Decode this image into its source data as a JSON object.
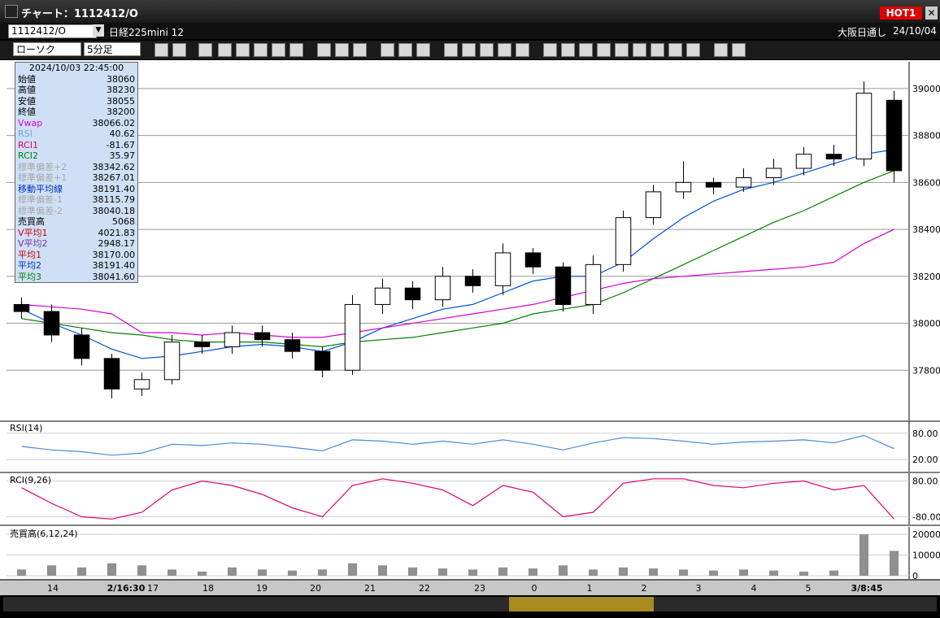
{
  "window": {
    "title": "チャート：1112412/O",
    "badge": "HOT1"
  },
  "toolbar": {
    "symbol": "1112412/O",
    "name": "日経225mini 12",
    "session": "大阪日通し",
    "date": "24/10/04",
    "chart_kind": "ローソク",
    "interval": "5分足"
  },
  "info_panel": {
    "timestamp": "2024/10/03 22:45:00",
    "rows": [
      {
        "label": "始値",
        "value": "38060",
        "color": "#000000"
      },
      {
        "label": "高値",
        "value": "38230",
        "color": "#000000"
      },
      {
        "label": "安値",
        "value": "38055",
        "color": "#000000"
      },
      {
        "label": "終値",
        "value": "38200",
        "color": "#000000"
      },
      {
        "label": "Vwap",
        "value": "38066.02",
        "color": "#d000d0"
      },
      {
        "label": "RSI",
        "value": "40.62",
        "color": "#6fa0e0"
      },
      {
        "label": "RCI1",
        "value": "-81.67",
        "color": "#e0006a"
      },
      {
        "label": "RCI2",
        "value": "35.97",
        "color": "#008000"
      },
      {
        "label": "標準偏差+2",
        "value": "38342.62",
        "color": "#a8a8a8"
      },
      {
        "label": "標準偏差+1",
        "value": "38267.01",
        "color": "#a8a8a8"
      },
      {
        "label": "移動平均線",
        "value": "38191.40",
        "color": "#0030c0"
      },
      {
        "label": "標準偏差-1",
        "value": "38115.79",
        "color": "#a8a8a8"
      },
      {
        "label": "標準偏差-2",
        "value": "38040.18",
        "color": "#a8a8a8"
      },
      {
        "label": "売買高",
        "value": "5068",
        "color": "#000000"
      },
      {
        "label": "V平均1",
        "value": "4021.83",
        "color": "#d00000"
      },
      {
        "label": "V平均2",
        "value": "2948.17",
        "color": "#7030a0"
      },
      {
        "label": "平均1",
        "value": "38170.00",
        "color": "#d00000"
      },
      {
        "label": "平均2",
        "value": "38191.40",
        "color": "#0030c0"
      },
      {
        "label": "平均3",
        "value": "38041.60",
        "color": "#008000"
      }
    ]
  },
  "chart_data": [
    {
      "type": "candlestick",
      "open": [
        38080,
        38050,
        37950,
        37850,
        37720,
        37760,
        37920,
        37900,
        37960,
        37930,
        37880,
        37800,
        38080,
        38150,
        38100,
        38200,
        38160,
        38300,
        38240,
        38080,
        38250,
        38450,
        38560,
        38600,
        38580,
        38620,
        38660,
        38720,
        38700,
        38950
      ],
      "high": [
        38110,
        38080,
        37980,
        37870,
        37790,
        37950,
        37950,
        37990,
        37990,
        37960,
        37900,
        38120,
        38190,
        38180,
        38240,
        38230,
        38340,
        38320,
        38260,
        38290,
        38480,
        38590,
        38690,
        38620,
        38660,
        38700,
        38750,
        38760,
        39030,
        38990
      ],
      "low": [
        38020,
        37920,
        37820,
        37680,
        37690,
        37740,
        37870,
        37870,
        37900,
        37850,
        37770,
        37780,
        38040,
        38060,
        38070,
        38130,
        38120,
        38210,
        38050,
        38040,
        38220,
        38420,
        38530,
        38550,
        38560,
        38590,
        38630,
        38670,
        38670,
        38600
      ],
      "close": [
        38050,
        37950,
        37850,
        37720,
        37760,
        37920,
        37900,
        37960,
        37930,
        37880,
        37800,
        38080,
        38150,
        38100,
        38200,
        38160,
        38300,
        38240,
        38080,
        38250,
        38450,
        38560,
        38600,
        38580,
        38620,
        38660,
        38720,
        38700,
        38980,
        38650
      ],
      "series": [
        {
          "color": "#0050e0",
          "values": [
            38060,
            38000,
            37950,
            37890,
            37850,
            37860,
            37880,
            37900,
            37910,
            37900,
            37880,
            37920,
            37980,
            38020,
            38060,
            38080,
            38130,
            38180,
            38200,
            38200,
            38260,
            38360,
            38450,
            38520,
            38570,
            38600,
            38640,
            38680,
            38720,
            38740
          ]
        },
        {
          "color": "#008000",
          "values": [
            38020,
            38000,
            37980,
            37960,
            37950,
            37930,
            37920,
            37920,
            37920,
            37910,
            37900,
            37920,
            37930,
            37940,
            37960,
            37980,
            38000,
            38040,
            38060,
            38080,
            38130,
            38190,
            38250,
            38310,
            38370,
            38430,
            38480,
            38540,
            38600,
            38650
          ]
        },
        {
          "color": "#d000d0",
          "values": [
            38080,
            38070,
            38060,
            38040,
            37960,
            37960,
            37950,
            37960,
            37950,
            37940,
            37940,
            37960,
            37980,
            38000,
            38020,
            38040,
            38060,
            38080,
            38110,
            38140,
            38170,
            38190,
            38200,
            38210,
            38220,
            38230,
            38240,
            38260,
            38340,
            38400
          ]
        }
      ],
      "ylim": [
        37600,
        39100
      ],
      "yticks": [
        39000,
        38800,
        38600,
        38400,
        38200,
        38000,
        37800
      ],
      "grid": true,
      "x_labels": [
        "14",
        "2/16:30",
        "17",
        "18",
        "19",
        "20",
        "21",
        "22",
        "23",
        "0",
        "1",
        "2",
        "3",
        "4",
        "5",
        "3/8:45"
      ]
    },
    {
      "type": "line",
      "title": "RSI(14)",
      "series": [
        {
          "color": "#4a8ad8",
          "values": [
            50,
            42,
            38,
            30,
            35,
            55,
            52,
            58,
            55,
            48,
            40,
            65,
            62,
            55,
            62,
            55,
            65,
            55,
            42,
            58,
            70,
            68,
            62,
            55,
            60,
            62,
            65,
            58,
            75,
            45
          ]
        }
      ],
      "ylim": [
        0,
        100
      ],
      "yticks": [
        {
          "value": 80,
          "label": "80.00"
        },
        {
          "value": 20,
          "label": "20.00"
        }
      ]
    },
    {
      "type": "line",
      "title": "RCI(9,26)",
      "series": [
        {
          "color": "#e0006a",
          "values": [
            50,
            -20,
            -80,
            -90,
            -60,
            40,
            80,
            60,
            20,
            -40,
            -80,
            60,
            90,
            70,
            40,
            -30,
            60,
            30,
            -80,
            -60,
            70,
            90,
            90,
            60,
            50,
            70,
            80,
            40,
            60,
            -90
          ]
        }
      ],
      "ylim": [
        -100,
        100
      ],
      "yticks": [
        {
          "value": 80,
          "label": "80.00"
        },
        {
          "value": -80,
          "label": "-80.00"
        }
      ]
    },
    {
      "type": "bar",
      "title": "売買高(6,12,24)",
      "color": "#909090",
      "values": [
        3000,
        5000,
        4000,
        6000,
        5000,
        3000,
        2000,
        4000,
        3000,
        2500,
        3000,
        6000,
        5000,
        4000,
        3500,
        3000,
        4000,
        3500,
        5000,
        3000,
        4000,
        3500,
        3000,
        2500,
        3000,
        2500,
        2000,
        2500,
        20000,
        12000
      ],
      "ylim": [
        0,
        22000
      ],
      "yticks": [
        20000,
        10000,
        0
      ]
    }
  ]
}
